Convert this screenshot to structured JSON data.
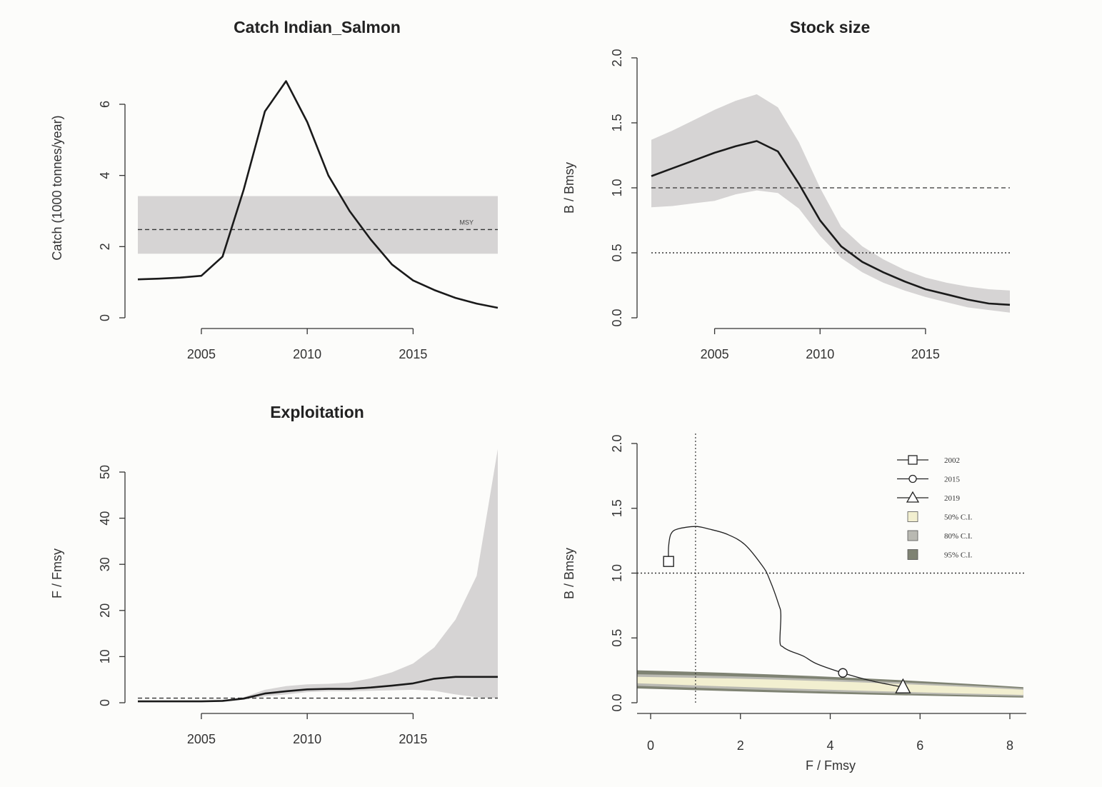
{
  "chart_data": [
    {
      "type": "line",
      "title": "Catch Indian_Salmon",
      "xlabel": "",
      "ylabel": "Catch (1000 tonnes/year)",
      "xlim": [
        2002,
        2019
      ],
      "ylim": [
        0,
        7.5
      ],
      "xticks": [
        2005,
        2010,
        2015
      ],
      "yticks": [
        0,
        2,
        4,
        6
      ],
      "series": [
        {
          "name": "Catch",
          "x": [
            2002,
            2003,
            2004,
            2005,
            2006,
            2007,
            2008,
            2009,
            2010,
            2011,
            2012,
            2013,
            2014,
            2015,
            2016,
            2017,
            2018,
            2019
          ],
          "values": [
            1.08,
            1.1,
            1.13,
            1.18,
            1.72,
            3.6,
            5.8,
            6.65,
            5.5,
            4.0,
            3.0,
            2.2,
            1.5,
            1.05,
            0.78,
            0.56,
            0.4,
            0.28
          ]
        }
      ],
      "band": {
        "name": "MSY range",
        "x": [
          2002,
          2019
        ],
        "lower": 1.8,
        "upper": 3.42
      },
      "reference_line": {
        "label": "MSY",
        "value": 2.48
      }
    },
    {
      "type": "area",
      "title": "Stock size",
      "xlabel": "",
      "ylabel": "B / Bmsy",
      "xlim": [
        2002,
        2019
      ],
      "ylim": [
        0,
        2.0
      ],
      "xticks": [
        2005,
        2010,
        2015
      ],
      "yticks": [
        "0.0",
        "0.5",
        "1.0",
        "1.5",
        "2.0"
      ],
      "series": [
        {
          "name": "B/Bmsy",
          "x": [
            2002,
            2003,
            2004,
            2005,
            2006,
            2007,
            2008,
            2009,
            2010,
            2011,
            2012,
            2013,
            2014,
            2015,
            2016,
            2017,
            2018,
            2019
          ],
          "values": [
            1.09,
            1.15,
            1.21,
            1.27,
            1.32,
            1.36,
            1.28,
            1.03,
            0.75,
            0.55,
            0.43,
            0.35,
            0.28,
            0.22,
            0.18,
            0.14,
            0.11,
            0.1
          ],
          "lower": [
            0.85,
            0.86,
            0.88,
            0.9,
            0.95,
            0.98,
            0.96,
            0.84,
            0.63,
            0.46,
            0.35,
            0.27,
            0.21,
            0.16,
            0.12,
            0.08,
            0.06,
            0.04
          ],
          "upper": [
            1.37,
            1.44,
            1.52,
            1.6,
            1.67,
            1.72,
            1.62,
            1.35,
            1.0,
            0.7,
            0.55,
            0.45,
            0.37,
            0.31,
            0.27,
            0.24,
            0.22,
            0.21
          ]
        }
      ],
      "reference_lines": [
        {
          "value": 1.0,
          "style": "dashed"
        },
        {
          "value": 0.5,
          "style": "dotted"
        }
      ]
    },
    {
      "type": "area",
      "title": "Exploitation",
      "xlabel": "",
      "ylabel": "F / Fmsy",
      "xlim": [
        2002,
        2019
      ],
      "ylim": [
        0,
        58
      ],
      "xticks": [
        2005,
        2010,
        2015
      ],
      "yticks": [
        0,
        10,
        20,
        30,
        40,
        50
      ],
      "series": [
        {
          "name": "F/Fmsy",
          "x": [
            2002,
            2003,
            2004,
            2005,
            2006,
            2007,
            2008,
            2009,
            2010,
            2011,
            2012,
            2013,
            2014,
            2015,
            2016,
            2017,
            2018,
            2019
          ],
          "values": [
            0.3,
            0.3,
            0.3,
            0.3,
            0.4,
            0.9,
            2.0,
            2.5,
            2.9,
            3.0,
            3.0,
            3.3,
            3.7,
            4.2,
            5.2,
            5.6,
            5.6,
            5.6
          ],
          "lower": [
            0.2,
            0.2,
            0.2,
            0.2,
            0.3,
            0.7,
            1.4,
            1.8,
            2.3,
            2.5,
            2.5,
            2.6,
            2.7,
            2.8,
            2.6,
            1.8,
            1.2,
            1.0
          ],
          "upper": [
            0.4,
            0.4,
            0.4,
            0.4,
            0.5,
            1.2,
            2.8,
            3.6,
            4.0,
            4.1,
            4.4,
            5.3,
            6.6,
            8.5,
            12.0,
            18.0,
            27.5,
            55.0
          ]
        }
      ],
      "reference_line": {
        "value": 1.0,
        "style": "dashed"
      }
    },
    {
      "type": "scatter",
      "title": "",
      "xlabel": "F / Fmsy",
      "ylabel": "B / Bmsy",
      "xlim": [
        -0.3,
        8.3
      ],
      "ylim": [
        0,
        2.0
      ],
      "xticks": [
        0,
        2,
        4,
        6,
        8
      ],
      "yticks": [
        "0.0",
        "0.5",
        "1.0",
        "1.5",
        "2.0"
      ],
      "trajectory": {
        "x": [
          0.4,
          0.4,
          0.45,
          0.6,
          1.0,
          1.3,
          1.7,
          2.1,
          2.5,
          2.65,
          2.85,
          2.9,
          2.88,
          2.95,
          3.1,
          3.4,
          3.7,
          4.28,
          4.9,
          5.62
        ],
        "y": [
          1.09,
          1.2,
          1.3,
          1.34,
          1.36,
          1.34,
          1.3,
          1.22,
          1.05,
          0.95,
          0.76,
          0.68,
          0.47,
          0.43,
          0.4,
          0.36,
          0.3,
          0.23,
          0.17,
          0.12
        ]
      },
      "points": [
        {
          "label": "2002",
          "marker": "square",
          "x": 0.4,
          "y": 1.09
        },
        {
          "label": "2015",
          "marker": "circle",
          "x": 4.28,
          "y": 0.23
        },
        {
          "label": "2019",
          "marker": "triangle",
          "x": 5.62,
          "y": 0.12
        }
      ],
      "ci_band": {
        "x": [
          -0.3,
          8.3
        ],
        "c95": {
          "lower": [
            0.11,
            0.04
          ],
          "upper": [
            0.25,
            0.12
          ]
        },
        "c80": {
          "lower": [
            0.13,
            0.05
          ],
          "upper": [
            0.22,
            0.11
          ]
        },
        "c50": {
          "lower": [
            0.15,
            0.06
          ],
          "upper": [
            0.2,
            0.1
          ]
        }
      },
      "reference_lines": [
        {
          "axis": "x",
          "value": 1.0
        },
        {
          "axis": "y",
          "value": 1.0
        }
      ],
      "legend": [
        {
          "label": "2002",
          "type": "line-square"
        },
        {
          "label": "2015",
          "type": "line-circle"
        },
        {
          "label": "2019",
          "type": "line-triangle"
        },
        {
          "label": "50% C.I.",
          "type": "box",
          "color": "#f2efd0"
        },
        {
          "label": "80% C.I.",
          "type": "box",
          "color": "#b9b9b2"
        },
        {
          "label": "95% C.I.",
          "type": "box",
          "color": "#7f8373"
        }
      ],
      "legend_position": "top-right"
    }
  ],
  "colors": {
    "background": "#fcfcfa",
    "band": "#d6d4d4",
    "line": "#1a1a1a",
    "ci50": "#f2efd0",
    "ci80": "#b9b9b2",
    "ci95": "#7f8373"
  }
}
